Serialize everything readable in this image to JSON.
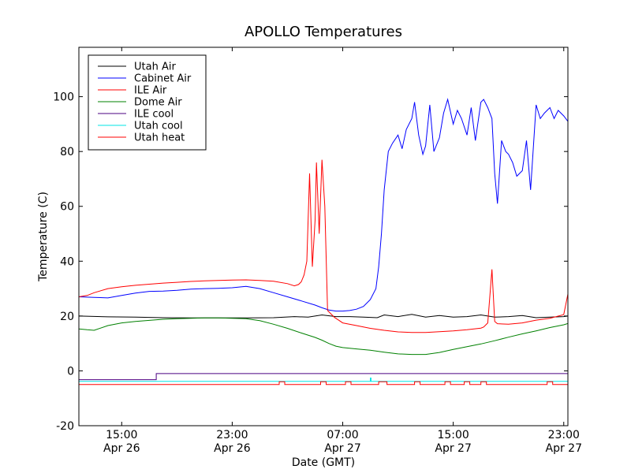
{
  "chart_data": {
    "type": "line",
    "title": "APOLLO Temperatures",
    "xlabel": "Date (GMT)",
    "ylabel": "Temperature (C)",
    "xlim": [
      11.9,
      47.3
    ],
    "ylim": [
      -20,
      118
    ],
    "grid": false,
    "legend_position": "top-left",
    "x_unit": "hours since 00:00 GMT Apr 26",
    "x_ticks": [
      {
        "x": 15,
        "time": "15:00",
        "date": "Apr 26"
      },
      {
        "x": 23,
        "time": "23:00",
        "date": "Apr 26"
      },
      {
        "x": 31,
        "time": "07:00",
        "date": "Apr 27"
      },
      {
        "x": 39,
        "time": "15:00",
        "date": "Apr 27"
      },
      {
        "x": 47,
        "time": "23:00",
        "date": "Apr 27"
      }
    ],
    "y_ticks": [
      {
        "value": -20,
        "label": "-20"
      },
      {
        "value": 0,
        "label": "0"
      },
      {
        "value": 20,
        "label": "20"
      },
      {
        "value": 40,
        "label": "40"
      },
      {
        "value": 60,
        "label": "60"
      },
      {
        "value": 80,
        "label": "80"
      },
      {
        "value": 100,
        "label": "100"
      }
    ],
    "series": [
      {
        "name": "Utah Air",
        "color": "#000000",
        "x": [
          11.9,
          14,
          16,
          18,
          20,
          22,
          24,
          26,
          27.5,
          28.5,
          29.5,
          30.5,
          31.5,
          32.5,
          33.5,
          34,
          35,
          36,
          37,
          38,
          39,
          40,
          41,
          42,
          43,
          44,
          45,
          46,
          47,
          47.3
        ],
        "y": [
          20,
          19.7,
          19.6,
          19.4,
          19.3,
          19.3,
          19.3,
          19.4,
          19.8,
          19.6,
          20.4,
          19.8,
          19.8,
          19.6,
          19.4,
          20.4,
          19.8,
          20.6,
          19.6,
          20.2,
          19.6,
          19.8,
          20.4,
          19.6,
          19.8,
          20.2,
          19.4,
          19.6,
          19.8,
          20
        ]
      },
      {
        "name": "Cabinet Air",
        "color": "#0000ff",
        "x": [
          11.9,
          13,
          14,
          15,
          16,
          17,
          18,
          19,
          20,
          21,
          22,
          23,
          24,
          25,
          26,
          27,
          28,
          29,
          29.5,
          30,
          30.5,
          31,
          31.5,
          32,
          32.5,
          33,
          33.4,
          33.6,
          33.8,
          34,
          34.3,
          34.6,
          35,
          35.3,
          35.6,
          36,
          36.2,
          36.5,
          36.8,
          37,
          37.3,
          37.6,
          38,
          38.3,
          38.6,
          39,
          39.3,
          39.6,
          40,
          40.3,
          40.6,
          41,
          41.2,
          41.5,
          41.8,
          42,
          42.2,
          42.5,
          42.8,
          43,
          43.3,
          43.6,
          44,
          44.3,
          44.6,
          45,
          45.3,
          45.6,
          46,
          46.3,
          46.6,
          47,
          47.3
        ],
        "y": [
          27,
          26.8,
          26.6,
          27.5,
          28.4,
          29,
          29.1,
          29.4,
          29.8,
          30,
          30.1,
          30.3,
          30.8,
          30,
          28.5,
          27,
          25.5,
          24,
          23,
          22.2,
          21.8,
          21.8,
          22,
          22.5,
          23.5,
          26,
          30,
          38,
          50,
          66,
          80,
          83,
          86,
          81,
          88,
          92,
          98,
          86,
          79,
          82,
          97,
          80,
          85,
          94,
          99,
          90,
          95,
          92,
          86,
          96,
          84,
          98,
          99,
          96,
          92,
          72,
          61,
          84,
          80,
          79,
          76,
          71,
          73,
          84,
          66,
          97,
          92,
          94,
          96,
          92,
          95,
          93,
          91
        ]
      },
      {
        "name": "ILE Air",
        "color": "#ff0000",
        "x": [
          11.9,
          12.5,
          13,
          14,
          15,
          16,
          17,
          18,
          19,
          20,
          21,
          22,
          23,
          24,
          25,
          26,
          27,
          27.5,
          27.8,
          28,
          28.2,
          28.4,
          28.6,
          28.8,
          29,
          29.1,
          29.3,
          29.5,
          29.7,
          29.9,
          30.1,
          30.4,
          30.7,
          31,
          32,
          33,
          34,
          35,
          36,
          37,
          38,
          39,
          40,
          41,
          41.2,
          41.5,
          41.8,
          42,
          42.2,
          43,
          44,
          45,
          46,
          47,
          47.3
        ],
        "y": [
          27,
          27.5,
          28.5,
          30,
          30.7,
          31.2,
          31.6,
          32,
          32.3,
          32.6,
          32.8,
          33,
          33.1,
          33.2,
          33,
          32.7,
          31.8,
          31,
          31.5,
          32.5,
          35,
          40,
          72,
          38,
          55,
          76,
          50,
          77,
          60,
          22,
          21,
          19.5,
          18.5,
          17.5,
          16.5,
          15.5,
          14.8,
          14.2,
          14,
          14,
          14.3,
          14.6,
          15,
          15.6,
          16,
          17.5,
          37,
          18,
          17.2,
          17,
          17.5,
          18.5,
          19.2,
          20.5,
          28
        ]
      },
      {
        "name": "Dome Air",
        "color": "#008000",
        "x": [
          11.9,
          12.5,
          13,
          14,
          15,
          16,
          17,
          18,
          19,
          20,
          21,
          22,
          23,
          24,
          25,
          26,
          27,
          28,
          29,
          29.5,
          30,
          30.5,
          31,
          32,
          33,
          34,
          35,
          36,
          37,
          38,
          39,
          40,
          41,
          42,
          43,
          44,
          45,
          46,
          47,
          47.3
        ],
        "y": [
          15.3,
          15,
          14.8,
          16.5,
          17.5,
          18,
          18.4,
          18.8,
          19,
          19.2,
          19.3,
          19.3,
          19.2,
          19,
          18.3,
          17,
          15.5,
          13.8,
          12.2,
          11.2,
          10,
          9,
          8.5,
          8,
          7.5,
          6.8,
          6.2,
          6,
          6,
          6.7,
          7.8,
          8.8,
          9.8,
          11,
          12.3,
          13.5,
          14.6,
          15.8,
          16.8,
          17.3
        ]
      },
      {
        "name": "ILE cool",
        "color": "#4b0082",
        "x": [
          11.9,
          17.5,
          17.5,
          47.3
        ],
        "y": [
          -3.2,
          -3.2,
          -1,
          -1
        ]
      },
      {
        "name": "Utah cool",
        "color": "#00e5e5",
        "x": [
          11.9,
          33,
          33,
          33.05,
          33.05,
          47.3
        ],
        "y": [
          -3.8,
          -3.8,
          -2.6,
          -2.6,
          -3.8,
          -3.8
        ]
      },
      {
        "name": "Utah heat",
        "color": "#ff0000",
        "x": [
          11.9,
          26.4,
          26.4,
          26.8,
          26.8,
          29.4,
          29.4,
          29.8,
          29.8,
          31.2,
          31.2,
          31.6,
          31.6,
          33.6,
          33.6,
          34.2,
          34.2,
          36.2,
          36.2,
          36.6,
          36.6,
          38.4,
          38.4,
          38.8,
          38.8,
          39.8,
          39.8,
          40.2,
          40.2,
          41,
          41,
          41.4,
          41.4,
          45.8,
          45.8,
          46.2,
          46.2,
          47.3
        ],
        "y": [
          -5,
          -5,
          -4,
          -4,
          -5,
          -5,
          -4,
          -4,
          -5,
          -5,
          -4,
          -4,
          -5,
          -5,
          -4,
          -4,
          -5,
          -5,
          -4,
          -4,
          -5,
          -5,
          -4,
          -4,
          -5,
          -5,
          -4,
          -4,
          -5,
          -5,
          -4,
          -4,
          -5,
          -5,
          -4,
          -4,
          -5,
          -5
        ]
      }
    ]
  }
}
